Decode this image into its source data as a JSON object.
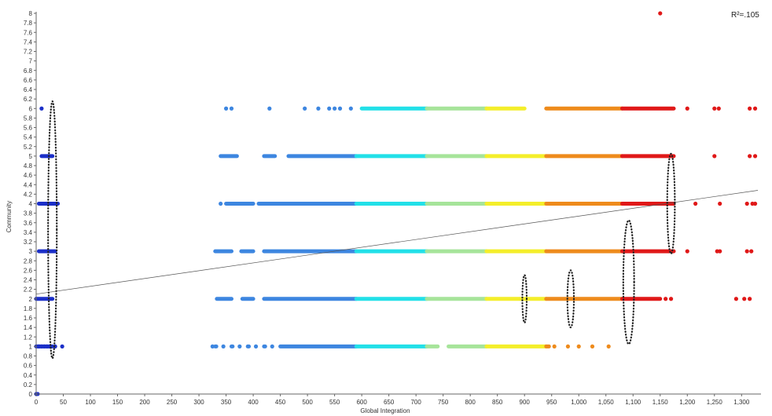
{
  "chart_data": {
    "type": "scatter",
    "title": "",
    "xlabel": "Global Integration",
    "ylabel": "Community",
    "annotation": "R²=.105",
    "xlim": [
      0,
      1330
    ],
    "ylim": [
      0,
      8
    ],
    "x_ticks": [
      0,
      50,
      100,
      150,
      200,
      250,
      300,
      350,
      400,
      450,
      500,
      550,
      600,
      650,
      700,
      750,
      800,
      850,
      900,
      950,
      1000,
      1050,
      1100,
      1150,
      1200,
      1250,
      1300
    ],
    "x_tick_labels": [
      "0",
      "50",
      "100",
      "150",
      "200",
      "250",
      "300",
      "350",
      "400",
      "450",
      "500",
      "550",
      "600",
      "650",
      "700",
      "750",
      "800",
      "850",
      "900",
      "950",
      "1,000",
      "1,050",
      "1,100",
      "1,150",
      "1,200",
      "1,250",
      "1,300"
    ],
    "y_ticks": [
      0,
      0.2,
      0.4,
      0.6,
      0.8,
      1,
      1.2,
      1.4,
      1.6,
      1.8,
      2,
      2.2,
      2.4,
      2.6,
      2.8,
      3,
      3.2,
      3.4,
      3.6,
      3.8,
      4,
      4.2,
      4.4,
      4.6,
      4.8,
      5,
      5.2,
      5.4,
      5.6,
      5.8,
      6,
      6.2,
      6.4,
      6.6,
      6.8,
      7,
      7.2,
      7.4,
      7.6,
      7.8,
      8
    ],
    "y_tick_labels": [
      "0",
      "0.2",
      "0.4",
      "0.6",
      "0.8",
      "1",
      "1.2",
      "1.4",
      "1.6",
      "1.8",
      "2",
      "2.2",
      "2.4",
      "2.6",
      "2.8",
      "3",
      "3.2",
      "3.4",
      "3.6",
      "3.8",
      "4",
      "4.2",
      "4.4",
      "4.6",
      "4.8",
      "5",
      "5.2",
      "5.4",
      "5.6",
      "5.8",
      "6",
      "6.2",
      "6.4",
      "6.6",
      "6.8",
      "7",
      "7.2",
      "7.4",
      "7.6",
      "7.8",
      "8"
    ],
    "grid": false,
    "color_bands": [
      {
        "from": 0,
        "to": 60,
        "color": "#1b2fc8"
      },
      {
        "from": 300,
        "to": 590,
        "color": "#3d86e0"
      },
      {
        "from": 590,
        "to": 720,
        "color": "#22e0e8"
      },
      {
        "from": 720,
        "to": 830,
        "color": "#a6e49a"
      },
      {
        "from": 830,
        "to": 940,
        "color": "#f4ee2a"
      },
      {
        "from": 940,
        "to": 1080,
        "color": "#ee8b1c"
      },
      {
        "from": 1080,
        "to": 1330,
        "color": "#e01818"
      }
    ],
    "rows": [
      {
        "y": 0,
        "segments": [
          [
            0,
            3
          ]
        ],
        "points": []
      },
      {
        "y": 1,
        "segments": [
          [
            0,
            30
          ],
          [
            330,
            332
          ],
          [
            360,
            362
          ],
          [
            390,
            392
          ],
          [
            420,
            422
          ],
          [
            450,
            740
          ],
          [
            760,
            945
          ]
        ],
        "points": [
          5,
          10,
          15,
          20,
          25,
          35,
          48,
          325,
          345,
          375,
          405,
          435,
          955,
          980,
          1000,
          1025,
          1055
        ]
      },
      {
        "y": 2,
        "segments": [
          [
            0,
            30
          ],
          [
            333,
            360
          ],
          [
            380,
            400
          ],
          [
            420,
            1150
          ]
        ],
        "points": [
          1160,
          1170,
          1290,
          1305,
          1315
        ]
      },
      {
        "y": 3,
        "segments": [
          [
            5,
            35
          ],
          [
            330,
            360
          ],
          [
            378,
            400
          ],
          [
            420,
            1175
          ]
        ],
        "points": [
          1200,
          1255,
          1260,
          1310,
          1318
        ]
      },
      {
        "y": 4,
        "segments": [
          [
            5,
            40
          ],
          [
            350,
            400
          ],
          [
            410,
            1175
          ]
        ],
        "points": [
          340,
          1215,
          1260,
          1310,
          1320,
          1325
        ]
      },
      {
        "y": 5,
        "segments": [
          [
            10,
            30
          ],
          [
            340,
            370
          ],
          [
            420,
            440
          ],
          [
            465,
            1175
          ]
        ],
        "points": [
          1250,
          1315,
          1325
        ]
      },
      {
        "y": 6,
        "segments": [
          [
            600,
            900
          ],
          [
            940,
            1175
          ]
        ],
        "points": [
          10,
          350,
          360,
          430,
          495,
          520,
          540,
          550,
          560,
          580,
          1200,
          1250,
          1258,
          1315,
          1325
        ]
      },
      {
        "y": 8,
        "segments": [],
        "points": [
          1150
        ]
      }
    ],
    "regression_line": {
      "x": [
        0,
        1330
      ],
      "y": [
        2.1,
        4.28
      ]
    },
    "ellipses": [
      {
        "cx": 30,
        "cy": 3.45,
        "rx": 8,
        "ry": 2.7
      },
      {
        "cx": 900,
        "cy": 2.0,
        "rx": 4,
        "ry": 0.5
      },
      {
        "cx": 985,
        "cy": 2.0,
        "rx": 6,
        "ry": 0.6
      },
      {
        "cx": 1092,
        "cy": 2.35,
        "rx": 10,
        "ry": 1.3
      },
      {
        "cx": 1170,
        "cy": 4.0,
        "rx": 7,
        "ry": 1.05
      }
    ]
  }
}
